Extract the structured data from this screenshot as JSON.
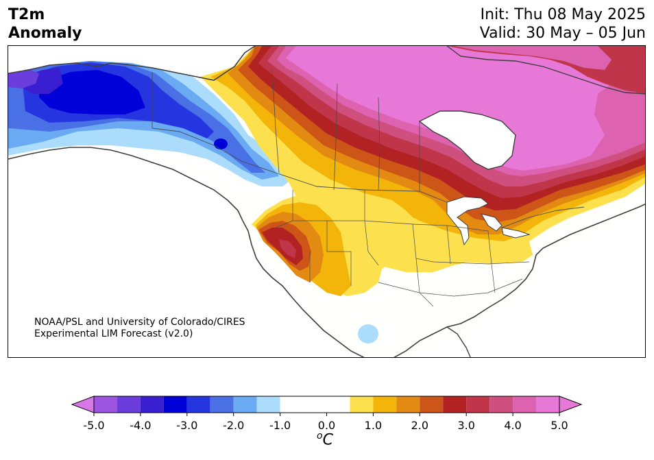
{
  "title": {
    "left_line1": "T2m",
    "left_line2": "Anomaly",
    "init": "Init: Thu 08 May 2025",
    "valid": "Valid: 30 May – 05 Jun"
  },
  "credit": {
    "line1": "NOAA/PSL and University of Colorado/CIRES",
    "line2": "Experimental LIM Forecast (v2.0)"
  },
  "colorbar": {
    "units_sup": "o",
    "units_main": "C",
    "tick_labels": [
      "-5.0",
      "-4.0",
      "-3.0",
      "-2.0",
      "-1.0",
      "0.0",
      "1.0",
      "2.0",
      "3.0",
      "4.0",
      "5.0"
    ],
    "bins": [
      {
        "lo": -5.0,
        "hi": -4.5,
        "color": "#9b55e0"
      },
      {
        "lo": -4.5,
        "hi": -4.0,
        "color": "#6a3ddc"
      },
      {
        "lo": -4.0,
        "hi": -3.5,
        "color": "#3a1fd2"
      },
      {
        "lo": -3.5,
        "hi": -3.0,
        "color": "#0000d8"
      },
      {
        "lo": -3.0,
        "hi": -2.5,
        "color": "#2536e0"
      },
      {
        "lo": -2.5,
        "hi": -2.0,
        "color": "#4a70e6"
      },
      {
        "lo": -2.0,
        "hi": -1.5,
        "color": "#6aaaf2"
      },
      {
        "lo": -1.5,
        "hi": -1.0,
        "color": "#acdcfb"
      },
      {
        "lo": -1.0,
        "hi": -0.5,
        "color": "#ffffff"
      },
      {
        "lo": -0.5,
        "hi": 0.5,
        "color": "#ffffff"
      },
      {
        "lo": 0.5,
        "hi": 1.0,
        "color": "#fde04e"
      },
      {
        "lo": 1.0,
        "hi": 1.5,
        "color": "#f3b50a"
      },
      {
        "lo": 1.5,
        "hi": 2.0,
        "color": "#e28a12"
      },
      {
        "lo": 2.0,
        "hi": 2.5,
        "color": "#cc5517"
      },
      {
        "lo": 2.5,
        "hi": 3.0,
        "color": "#b22222"
      },
      {
        "lo": 3.0,
        "hi": 3.5,
        "color": "#c0354a"
      },
      {
        "lo": 3.5,
        "hi": 4.0,
        "color": "#cf4f7e"
      },
      {
        "lo": 4.0,
        "hi": 4.5,
        "color": "#dd63b0"
      },
      {
        "lo": 4.5,
        "hi": 5.0,
        "color": "#e878d8"
      }
    ],
    "under_color": "#d878e8",
    "over_color": "#e878d8",
    "range": [
      -5.0,
      5.0
    ]
  },
  "map_colors": {
    "ocean": "#ffffff",
    "coast": "#3d3d3d",
    "border": "#4a4a4a",
    "lake": "#ffffff"
  }
}
